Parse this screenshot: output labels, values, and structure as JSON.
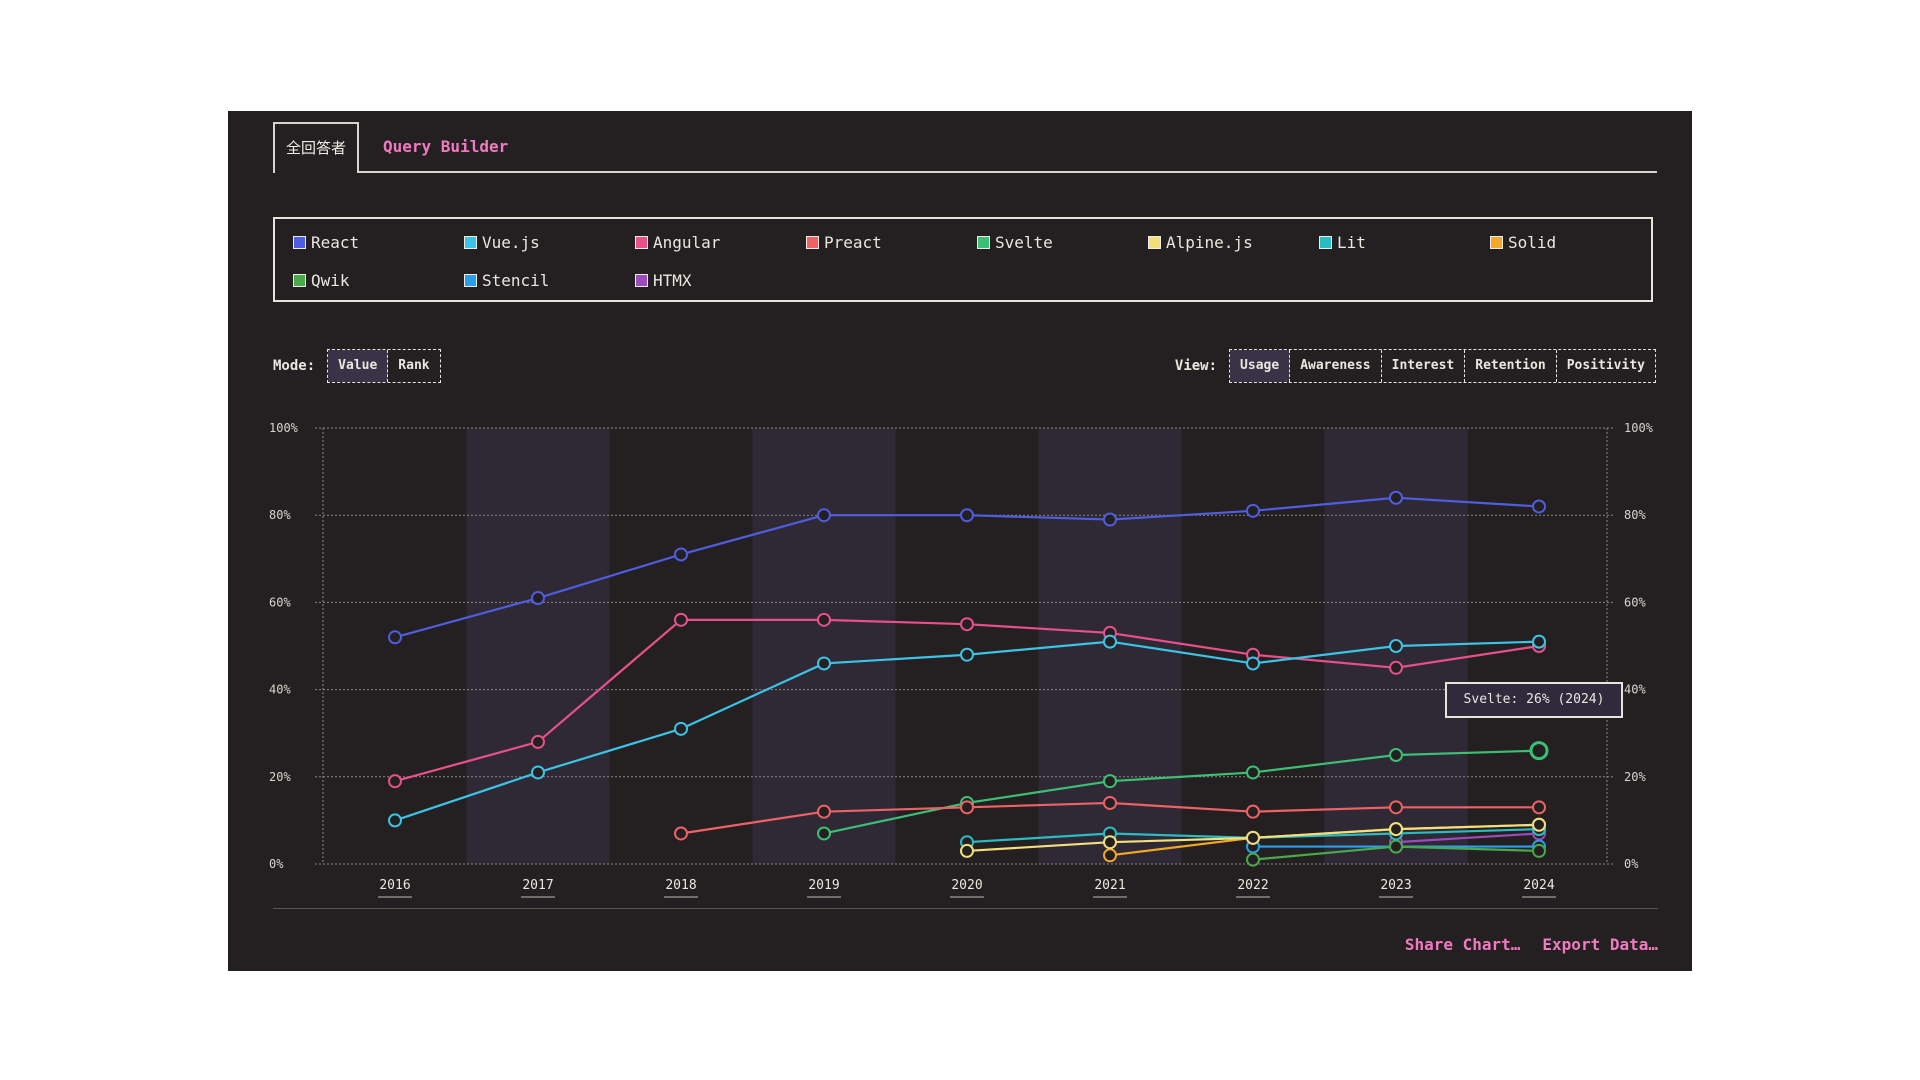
{
  "tabs": {
    "active": "全回答者",
    "link": "Query Builder"
  },
  "legend": [
    {
      "name": "React",
      "color": "#4f5de0"
    },
    {
      "name": "Vue.js",
      "color": "#3cc4e6"
    },
    {
      "name": "Angular",
      "color": "#e8508a"
    },
    {
      "name": "Preact",
      "color": "#ee6266"
    },
    {
      "name": "Svelte",
      "color": "#3cbf74"
    },
    {
      "name": "Alpine.js",
      "color": "#f2df7c"
    },
    {
      "name": "Lit",
      "color": "#2cbcc0"
    },
    {
      "name": "Solid",
      "color": "#f2a62a"
    },
    {
      "name": "Qwik",
      "color": "#4aa84a"
    },
    {
      "name": "Stencil",
      "color": "#2a9ee8"
    },
    {
      "name": "HTMX",
      "color": "#9a4cbc"
    }
  ],
  "mode": {
    "label": "Mode:",
    "options": [
      "Value",
      "Rank"
    ],
    "selected": "Value"
  },
  "view": {
    "label": "View:",
    "options": [
      "Usage",
      "Awareness",
      "Interest",
      "Retention",
      "Positivity"
    ],
    "selected": "Usage"
  },
  "tooltip": {
    "text": "Svelte: 26% (2024)",
    "series": "Svelte",
    "year": "2024"
  },
  "actions": {
    "share": "Share Chart…",
    "export": "Export Data…"
  },
  "chart_data": {
    "type": "line",
    "title": "",
    "xlabel": "",
    "ylabel": "",
    "x": [
      "2016",
      "2017",
      "2018",
      "2019",
      "2020",
      "2021",
      "2022",
      "2023",
      "2024"
    ],
    "ylim": [
      0,
      100
    ],
    "yticks": [
      "0%",
      "20%",
      "40%",
      "60%",
      "80%",
      "100%"
    ],
    "yticks_right": true,
    "grid": true,
    "alternating_year_bands": true,
    "highlighted_point": {
      "series": "Svelte",
      "x": "2024",
      "value": 26
    },
    "series": [
      {
        "name": "React",
        "color": "#4f5de0",
        "values": [
          52,
          61,
          71,
          80,
          80,
          79,
          81,
          84,
          82
        ]
      },
      {
        "name": "Vue.js",
        "color": "#3cc4e6",
        "values": [
          10,
          21,
          31,
          46,
          48,
          51,
          46,
          50,
          51
        ]
      },
      {
        "name": "Angular",
        "color": "#e8508a",
        "values": [
          19,
          28,
          56,
          56,
          55,
          53,
          48,
          45,
          50
        ]
      },
      {
        "name": "Preact",
        "color": "#ee6266",
        "values": [
          null,
          null,
          7,
          12,
          13,
          14,
          12,
          13,
          13
        ]
      },
      {
        "name": "Svelte",
        "color": "#3cbf74",
        "values": [
          null,
          null,
          null,
          7,
          14,
          19,
          21,
          25,
          26
        ]
      },
      {
        "name": "Alpine.js",
        "color": "#f2df7c",
        "values": [
          null,
          null,
          null,
          null,
          3,
          5,
          6,
          8,
          9
        ]
      },
      {
        "name": "Lit",
        "color": "#2cbcc0",
        "values": [
          null,
          null,
          null,
          null,
          5,
          7,
          6,
          7,
          8
        ]
      },
      {
        "name": "Solid",
        "color": "#f2a62a",
        "values": [
          null,
          null,
          null,
          null,
          null,
          2,
          6,
          8,
          9
        ]
      },
      {
        "name": "Qwik",
        "color": "#4aa84a",
        "values": [
          null,
          null,
          null,
          null,
          null,
          null,
          1,
          4,
          3
        ]
      },
      {
        "name": "Stencil",
        "color": "#2a9ee8",
        "values": [
          null,
          null,
          null,
          null,
          null,
          null,
          4,
          4,
          4
        ]
      },
      {
        "name": "HTMX",
        "color": "#9a4cbc",
        "values": [
          null,
          null,
          null,
          null,
          null,
          null,
          null,
          5,
          7
        ]
      }
    ]
  }
}
